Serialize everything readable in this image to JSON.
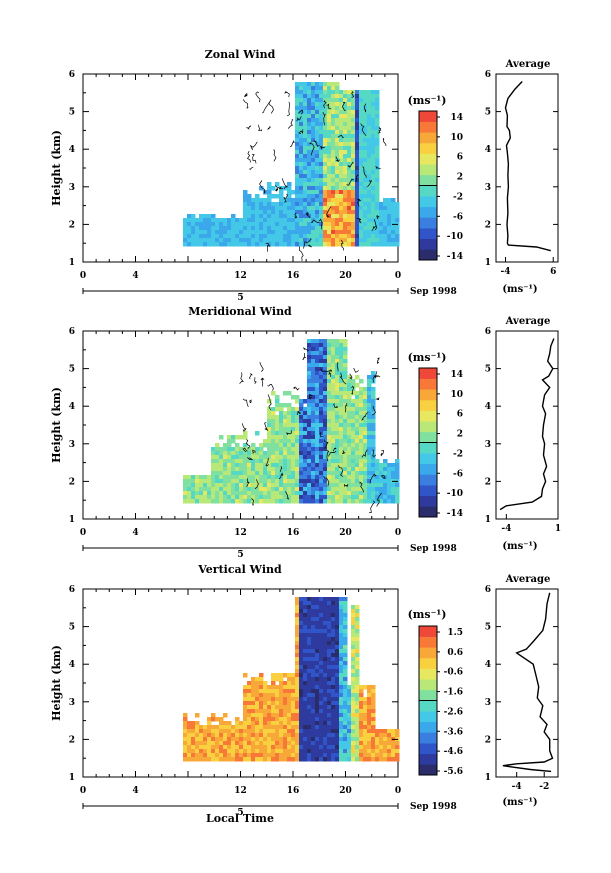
{
  "common": {
    "date_label": "Sep 1998",
    "day_label": "5",
    "xlabel_bottom": "Local Time",
    "x_ticks": [
      "0",
      "4",
      "12",
      "16",
      "20",
      "0"
    ],
    "colorbar_unit": "(ms⁻¹)",
    "avg_title": "Average"
  },
  "chart_data": [
    {
      "type": "heatmap",
      "title": "Zonal Wind",
      "ylabel": "Height (km)",
      "xlabel": "",
      "xlim": [
        0,
        24
      ],
      "ylim": [
        1,
        6
      ],
      "y_ticks": [
        "1",
        "2",
        "3",
        "4",
        "5",
        "6"
      ],
      "colorbar": {
        "unit": "(ms⁻¹)",
        "ticks": [
          "14",
          "10",
          "6",
          "2",
          "-2",
          "-6",
          "-10",
          "-14"
        ],
        "range": [
          -16,
          16
        ]
      },
      "average_profile": {
        "title": "Average",
        "xlabel": "(ms⁻¹)",
        "x_ticks": [
          "-4",
          "6"
        ],
        "y_ticks": [
          "1",
          "2",
          "3",
          "4",
          "5",
          "6"
        ],
        "xlim": [
          -6,
          7
        ],
        "points": [
          [
            -0.5,
            5.8
          ],
          [
            -2,
            5.6
          ],
          [
            -3.5,
            5.35
          ],
          [
            -4,
            5.1
          ],
          [
            -3.6,
            4.9
          ],
          [
            -3.7,
            4.6
          ],
          [
            -3.2,
            4.5
          ],
          [
            -3,
            4.3
          ],
          [
            -3.8,
            4.1
          ],
          [
            -3.6,
            3.9
          ],
          [
            -3.4,
            3.6
          ],
          [
            -3.5,
            3.3
          ],
          [
            -3.4,
            3.0
          ],
          [
            -3.6,
            2.7
          ],
          [
            -3.5,
            2.3
          ],
          [
            -3.7,
            2.0
          ],
          [
            -3.5,
            1.7
          ],
          [
            -3.6,
            1.5
          ],
          [
            -3.4,
            1.45
          ],
          [
            2.5,
            1.4
          ],
          [
            5.5,
            1.3
          ]
        ]
      }
    },
    {
      "type": "heatmap",
      "title": "Meridional Wind",
      "ylabel": "Height (km)",
      "xlabel": "",
      "xlim": [
        0,
        24
      ],
      "ylim": [
        1,
        6
      ],
      "y_ticks": [
        "1",
        "2",
        "3",
        "4",
        "5",
        "6"
      ],
      "colorbar": {
        "unit": "(ms⁻¹)",
        "ticks": [
          "14",
          "10",
          "6",
          "2",
          "-2",
          "-6",
          "-10",
          "-14"
        ],
        "range": [
          -16,
          16
        ]
      },
      "average_profile": {
        "title": "Average",
        "xlabel": "(ms⁻¹)",
        "x_ticks": [
          "-4",
          "1"
        ],
        "y_ticks": [
          "1",
          "2",
          "3",
          "4",
          "5",
          "6"
        ],
        "xlim": [
          -5,
          1
        ],
        "points": [
          [
            0.6,
            5.8
          ],
          [
            0.3,
            5.6
          ],
          [
            0.2,
            5.4
          ],
          [
            0.0,
            5.2
          ],
          [
            0.5,
            5.0
          ],
          [
            0.1,
            4.8
          ],
          [
            -0.5,
            4.7
          ],
          [
            0.2,
            4.5
          ],
          [
            -0.3,
            4.3
          ],
          [
            -0.5,
            4.0
          ],
          [
            -0.2,
            3.8
          ],
          [
            -0.4,
            3.5
          ],
          [
            -0.5,
            3.2
          ],
          [
            -0.3,
            3.0
          ],
          [
            -0.4,
            2.7
          ],
          [
            -0.1,
            2.4
          ],
          [
            -0.4,
            2.2
          ],
          [
            -0.2,
            2.0
          ],
          [
            -0.5,
            1.8
          ],
          [
            -0.6,
            1.6
          ],
          [
            -1.5,
            1.45
          ],
          [
            -4,
            1.35
          ],
          [
            -4.6,
            1.25
          ]
        ]
      }
    },
    {
      "type": "heatmap",
      "title": "Vertical Wind",
      "ylabel": "Height (km)",
      "xlabel": "Local Time",
      "xlim": [
        0,
        24
      ],
      "ylim": [
        1,
        6
      ],
      "y_ticks": [
        "1",
        "2",
        "3",
        "4",
        "5",
        "6"
      ],
      "colorbar": {
        "unit": "(ms⁻¹)",
        "ticks": [
          "1.5",
          "0.6",
          "-0.6",
          "-1.6",
          "-2.6",
          "-3.6",
          "-4.6",
          "-5.6"
        ],
        "range": [
          -6.1,
          2.0
        ]
      },
      "average_profile": {
        "title": "Average",
        "xlabel": "(ms⁻¹)",
        "x_ticks": [
          "-4",
          "-2"
        ],
        "y_ticks": [
          "1",
          "2",
          "3",
          "4",
          "5",
          "6"
        ],
        "xlim": [
          -5.5,
          -1.0
        ],
        "points": [
          [
            -1.6,
            5.9
          ],
          [
            -1.8,
            5.6
          ],
          [
            -1.9,
            5.2
          ],
          [
            -2.1,
            4.9
          ],
          [
            -2.8,
            4.6
          ],
          [
            -3.3,
            4.4
          ],
          [
            -4.0,
            4.3
          ],
          [
            -3.4,
            4.15
          ],
          [
            -2.8,
            4.0
          ],
          [
            -2.6,
            3.7
          ],
          [
            -2.4,
            3.4
          ],
          [
            -2.5,
            3.1
          ],
          [
            -2.1,
            2.9
          ],
          [
            -2.3,
            2.6
          ],
          [
            -1.8,
            2.4
          ],
          [
            -2.0,
            2.2
          ],
          [
            -1.6,
            2.0
          ],
          [
            -1.6,
            1.7
          ],
          [
            -1.4,
            1.5
          ],
          [
            -2.0,
            1.4
          ],
          [
            -4.0,
            1.35
          ],
          [
            -5.0,
            1.3
          ],
          [
            -3.0,
            1.2
          ],
          [
            -1.5,
            1.15
          ]
        ]
      }
    }
  ],
  "colors": {
    "palette": [
      "#2b2d6b",
      "#2e3a9e",
      "#2f55c8",
      "#3a7fe0",
      "#3aa8ea",
      "#44c8e8",
      "#55d8c4",
      "#7fe0a0",
      "#b8e878",
      "#e8e860",
      "#f8d040",
      "#f8a838",
      "#f87838",
      "#f04838"
    ]
  }
}
